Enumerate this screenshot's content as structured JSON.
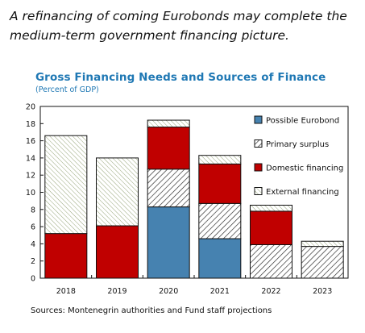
{
  "caption": "A refinancing of coming Eurobonds may complete the medium-term government financing picture.",
  "colors": {
    "title": "#1f78b4",
    "possible_eurobond": "#4682b0",
    "primary_surplus_hatch": "#222222",
    "domestic_financing": "#c00000",
    "external_financing_hatch": "#8a9a6a"
  },
  "chart_data": {
    "type": "bar",
    "stacked": true,
    "title": "Gross Financing Needs and Sources of Finance",
    "subtitle": "(Percent of GDP)",
    "source": "Sources: Montenegrin authorities and Fund staff projections",
    "xlabel": "",
    "ylabel": "",
    "ylim": [
      0,
      20
    ],
    "yticks": [
      "0",
      "2",
      "4",
      "6",
      "8",
      "10",
      "12",
      "14",
      "16",
      "18",
      "20"
    ],
    "categories": [
      "2018",
      "2019",
      "2020",
      "2021",
      "2022",
      "2023"
    ],
    "legend_position": "top-right",
    "series": [
      {
        "name": "Possible Eurobond",
        "key": "possible_eurobond",
        "values": [
          0,
          0,
          8.3,
          4.6,
          0,
          0
        ]
      },
      {
        "name": "Primary surplus",
        "key": "primary_surplus",
        "values": [
          0,
          0,
          4.4,
          4.1,
          3.9,
          3.7
        ]
      },
      {
        "name": "Domestic financing",
        "key": "domestic_financing",
        "values": [
          5.2,
          6.1,
          4.9,
          4.6,
          3.9,
          0
        ]
      },
      {
        "name": "External financing",
        "key": "external_financing",
        "values": [
          11.4,
          7.9,
          0.8,
          1.0,
          0.7,
          0.6
        ]
      }
    ]
  }
}
